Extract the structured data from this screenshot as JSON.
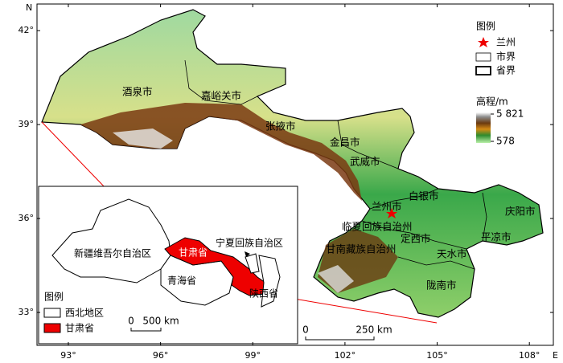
{
  "map": {
    "xlim": [
      91.98,
      108.78
    ],
    "ylim": [
      31.95,
      42.85
    ],
    "lat_label": "N",
    "lon_label": "E",
    "xticks": [
      {
        "value": 93,
        "label": "93°"
      },
      {
        "value": 96,
        "label": "96°"
      },
      {
        "value": 99,
        "label": "99°"
      },
      {
        "value": 102,
        "label": "102°"
      },
      {
        "value": 105,
        "label": "105°"
      },
      {
        "value": 108,
        "label": "108°"
      }
    ],
    "yticks": [
      {
        "value": 42,
        "label": "42°"
      },
      {
        "value": 39,
        "label": "39°"
      },
      {
        "value": 36,
        "label": "36°"
      },
      {
        "value": 33,
        "label": "33°"
      }
    ],
    "cities": [
      "酒泉市",
      "嘉峪关市",
      "张掖市",
      "金昌市",
      "武威市",
      "白银市",
      "兰州市",
      "临夏回族自治州",
      "定西市",
      "庆阳市",
      "平凉市",
      "天水市",
      "甘南藏族自治州",
      "陇南市"
    ]
  },
  "legend": {
    "title": "图例",
    "items": [
      "兰州",
      "市界",
      "省界"
    ],
    "elevation_title": "高程/m",
    "elevation_max": {
      "value": 5821,
      "label": "5 821"
    },
    "elevation_min": 578
  },
  "scale_bar": {
    "zero": 0,
    "length": {
      "value": 250,
      "label": "250 km"
    }
  },
  "inset": {
    "regions": [
      "新疆维吾尔自治区",
      "甘肃省",
      "宁夏回族自治区",
      "青海省",
      "陕西省"
    ],
    "legend_title": "图例",
    "legend_items": [
      "西北地区",
      "甘肃省"
    ],
    "scale_bar": {
      "zero": 0,
      "length": {
        "value": 500,
        "label": "500 km"
      }
    }
  }
}
